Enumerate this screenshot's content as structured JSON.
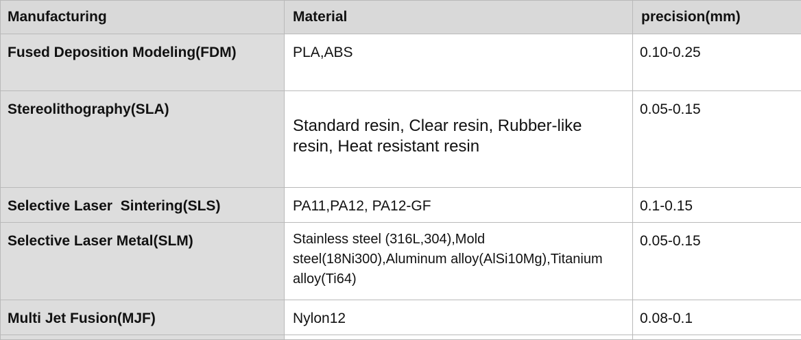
{
  "headers": {
    "manufacturing": "Manufacturing",
    "material": "Material",
    "precision": "precision(mm)"
  },
  "rows": [
    {
      "process": "Fused Deposition Modeling(FDM)",
      "material": "PLA,ABS",
      "precision": "0.10-0.25"
    },
    {
      "process": "Stereolithography(SLA)",
      "material": "Standard resin, Clear resin, Rubber-like resin, Heat resistant resin",
      "precision": "0.05-0.15"
    },
    {
      "process": "Selective Laser  Sintering(SLS)",
      "material": "PA11,PA12, PA12-GF",
      "precision": "0.1-0.15"
    },
    {
      "process": "Selective Laser Metal(SLM)",
      "material": "Stainless steel (316L,304),Mold steel(18Ni300),Aluminum alloy(AlSi10Mg),Titanium alloy(Ti64)",
      "precision": "0.05-0.15"
    },
    {
      "process": "Multi Jet Fusion(MJF)",
      "material": "Nylon12",
      "precision": "0.08-0.1"
    }
  ],
  "colors": {
    "header_bg": "#d9d9d9",
    "first_column_bg": "#dddddd",
    "border": "#b9b9b9"
  }
}
